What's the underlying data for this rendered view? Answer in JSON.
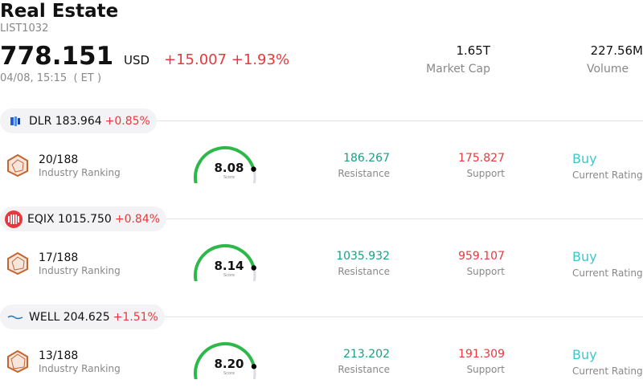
{
  "header": {
    "title": "Real Estate",
    "code": "LIST1032",
    "price": "778.151",
    "currency": "USD",
    "change": "+15.007 +1.93%",
    "timestamp": "04/08, 15:15  ( ET )",
    "market_cap_value": "1.65T",
    "market_cap_label": "Market Cap",
    "volume_value": "227.56M",
    "volume_label": "Volume"
  },
  "colors": {
    "negative_red": "#e8383d",
    "resistance_green": "#17a085",
    "rating_teal": "#3cc8c8",
    "gauge_green": "#2db84a",
    "gauge_track": "#dcdce4"
  },
  "stocks": [
    {
      "ticker_price": "DLR 183.964",
      "pct": "+0.85%",
      "logo": "dlr-logo-icon",
      "rank": "20/188",
      "rank_label": "Industry Ranking",
      "score": "8.08",
      "score_fraction": 0.808,
      "score_label": "Score",
      "resistance": "186.267",
      "resistance_label": "Resistance",
      "support": "175.827",
      "support_label": "Support",
      "rating": "Buy",
      "rating_label": "Current Rating"
    },
    {
      "ticker_price": "EQIX 1015.750",
      "pct": "+0.84%",
      "logo": "eqix-logo-icon",
      "rank": "17/188",
      "rank_label": "Industry Ranking",
      "score": "8.14",
      "score_fraction": 0.814,
      "score_label": "Score",
      "resistance": "1035.932",
      "resistance_label": "Resistance",
      "support": "959.107",
      "support_label": "Support",
      "rating": "Buy",
      "rating_label": "Current Rating"
    },
    {
      "ticker_price": "WELL 204.625",
      "pct": "+1.51%",
      "logo": "well-logo-icon",
      "rank": "13/188",
      "rank_label": "Industry Ranking",
      "score": "8.20",
      "score_fraction": 0.82,
      "score_label": "Score",
      "resistance": "213.202",
      "resistance_label": "Resistance",
      "support": "191.309",
      "support_label": "Support",
      "rating": "Buy",
      "rating_label": "Current Rating"
    }
  ]
}
